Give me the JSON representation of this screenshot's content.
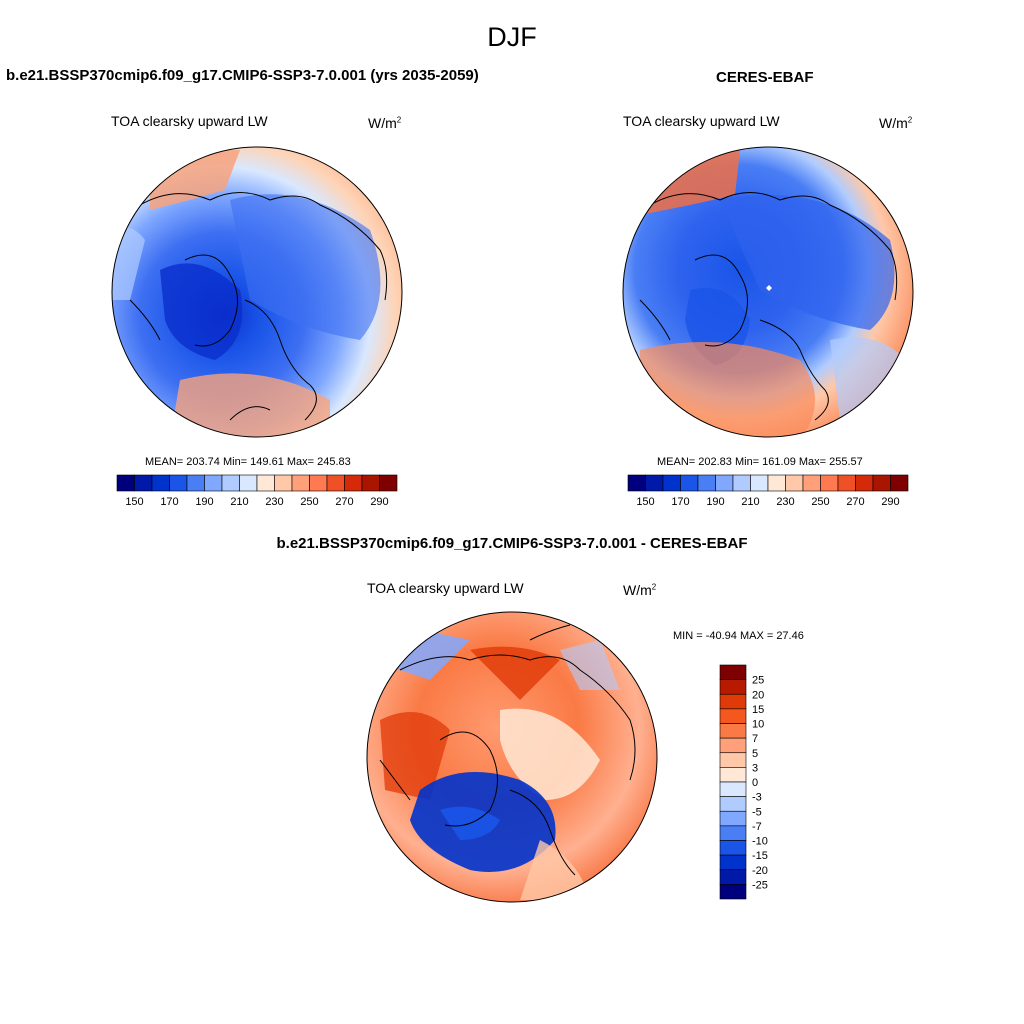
{
  "figure_title": "DJF",
  "panels": [
    {
      "case_title": "b.e21.BSSP370cmip6.f09_g17.CMIP6-SSP3-7.0.001 (yrs 2035-2059)",
      "variable": "TOA clearsky upward LW",
      "units_base": "W/m",
      "units_exp": "2",
      "stats": "MEAN= 203.74  Min= 149.61  Max= 245.83",
      "mean": 203.74,
      "min": 149.61,
      "max": 245.83
    },
    {
      "case_title": "CERES-EBAF",
      "variable": "TOA clearsky upward LW",
      "units_base": "W/m",
      "units_exp": "2",
      "stats": "MEAN= 202.83  Min= 161.09  Max= 255.57",
      "mean": 202.83,
      "min": 161.09,
      "max": 255.57
    },
    {
      "case_title": "b.e21.BSSP370cmip6.f09_g17.CMIP6-SSP3-7.0.001 - CERES-EBAF",
      "variable": "TOA clearsky upward LW",
      "units_base": "W/m",
      "units_exp": "2",
      "stats": "MIN = -40.94 MAX =  27.46",
      "min": -40.94,
      "max": 27.46
    }
  ],
  "colorbar_abs": {
    "colors": [
      "#00007f",
      "#0019a8",
      "#0033cc",
      "#1a55e8",
      "#4a7ef5",
      "#80a8ff",
      "#b0ccff",
      "#d9e8ff",
      "#ffe8d5",
      "#ffc8a8",
      "#ffa07a",
      "#ff7a50",
      "#f05025",
      "#d42a0a",
      "#aa1500",
      "#7f0000"
    ],
    "tick_labels": [
      "150",
      "170",
      "190",
      "210",
      "230",
      "250",
      "270",
      "290"
    ]
  },
  "colorbar_diff": {
    "colors": [
      "#7f0000",
      "#b81a00",
      "#e03a08",
      "#f5581e",
      "#fa7a45",
      "#ffa07a",
      "#ffc8a8",
      "#ffe8d5",
      "#d9e8ff",
      "#b0ccff",
      "#80a8ff",
      "#4a7ef5",
      "#1a55e8",
      "#0033cc",
      "#0019a8",
      "#00007f"
    ],
    "tick_labels": [
      "25",
      "20",
      "15",
      "10",
      "7",
      "5",
      "3",
      "0",
      "-3",
      "-5",
      "-7",
      "-10",
      "-15",
      "-20",
      "-25"
    ]
  }
}
